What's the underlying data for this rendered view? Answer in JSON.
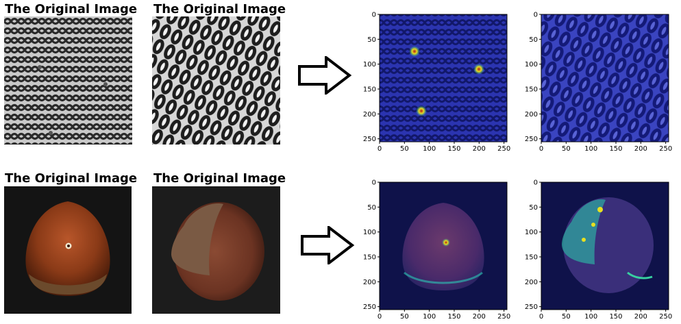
{
  "titles": {
    "top_left": "The Original Image",
    "top_right": "The Original Image",
    "bottom_left": "The Original Image",
    "bottom_right": "The Original Image"
  },
  "heatmap_axes": {
    "x_ticks": [
      "0",
      "50",
      "100",
      "150",
      "200",
      "250"
    ],
    "y_ticks": [
      "0",
      "50",
      "100",
      "150",
      "200",
      "250"
    ]
  },
  "colors": {
    "grid_background": "#c9c9c9",
    "grid_wire": "#2a2a2a",
    "heatmap_background": "#2b34b0",
    "heatmap_wire": "#12186a",
    "nut_shell": "#8a3a17",
    "nut_dark_bg": "#141414",
    "anomaly_hot": "#e8e020"
  }
}
